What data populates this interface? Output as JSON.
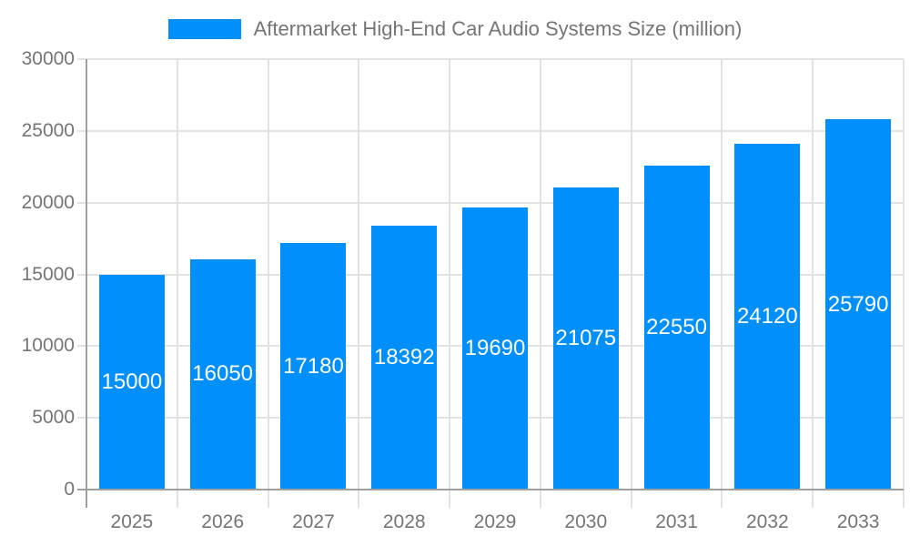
{
  "chart_data": {
    "type": "bar",
    "title": "Aftermarket High-End Car Audio Systems Size (million)",
    "legend_position": "top",
    "categories": [
      "2025",
      "2026",
      "2027",
      "2028",
      "2029",
      "2030",
      "2031",
      "2032",
      "2033"
    ],
    "series": [
      {
        "name": "Aftermarket High-End Car Audio Systems Size (million)",
        "values": [
          15000,
          16050,
          17180,
          18392,
          19690,
          21075,
          22550,
          24120,
          25790
        ]
      }
    ],
    "values": [
      15000,
      16050,
      17180,
      18392,
      19690,
      21075,
      22550,
      24120,
      25790
    ],
    "bar_labels": [
      "15000",
      "16050",
      "17180",
      "18392",
      "19690",
      "21075",
      "22550",
      "24120",
      "25790"
    ],
    "xlabel": "",
    "ylabel": "",
    "ylim": [
      0,
      30000
    ],
    "ytick_interval": 5000,
    "yticks": [
      0,
      5000,
      10000,
      15000,
      20000,
      25000,
      30000
    ],
    "ytick_labels": [
      "0",
      "5000",
      "10000",
      "15000",
      "20000",
      "25000",
      "30000"
    ],
    "grid": true,
    "colors": {
      "bar": "#008FFB",
      "grid": "#e3e3e3",
      "axis": "#a0a0a0",
      "text": "#757575",
      "bar_label": "#ffffff",
      "background": "#ffffff"
    }
  }
}
